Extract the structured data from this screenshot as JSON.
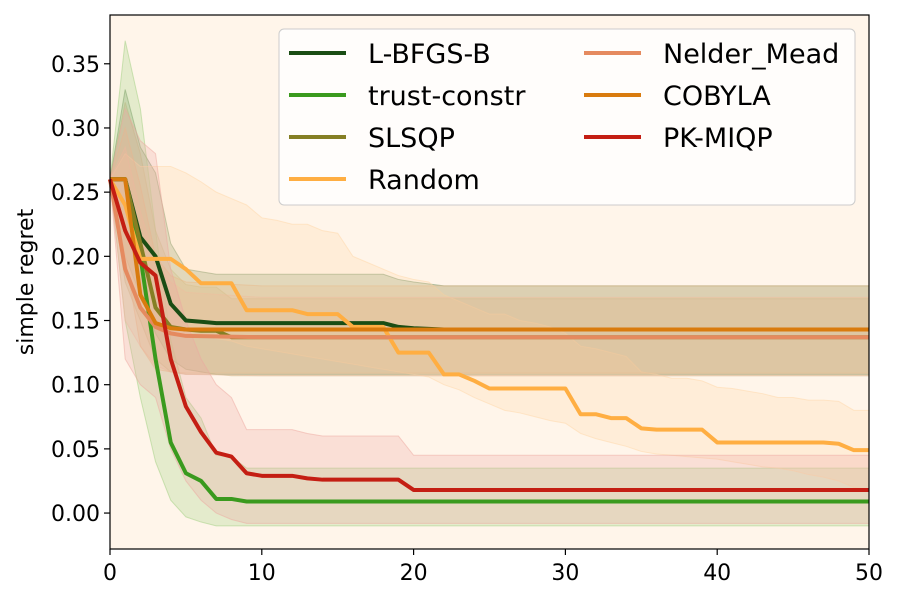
{
  "chart_data": {
    "type": "line",
    "title": "",
    "xlabel": "",
    "ylabel": "simple regret",
    "xlim": [
      0,
      50
    ],
    "ylim": [
      -0.028,
      0.388
    ],
    "xticks": [
      0,
      10,
      20,
      30,
      40,
      50
    ],
    "xtick_labels": [
      "0",
      "10",
      "20",
      "30",
      "40",
      "50"
    ],
    "yticks": [
      0.0,
      0.05,
      0.1,
      0.15,
      0.2,
      0.25,
      0.3,
      0.35
    ],
    "ytick_labels": [
      "0.00",
      "0.05",
      "0.10",
      "0.15",
      "0.20",
      "0.25",
      "0.30",
      "0.35"
    ],
    "grid": false,
    "background_color": "#fff5ea",
    "legend": {
      "location": "top-right",
      "columns": 2
    },
    "series": [
      {
        "name": "L-BFGS-B",
        "color": "#1a4d14",
        "band_color": "#6f8f5f",
        "x": [
          0,
          1,
          2,
          3,
          4,
          5,
          6,
          7,
          8,
          9,
          10,
          15,
          17,
          18,
          19,
          20,
          22,
          50
        ],
        "y": [
          0.26,
          0.26,
          0.215,
          0.2,
          0.163,
          0.15,
          0.149,
          0.148,
          0.148,
          0.148,
          0.148,
          0.148,
          0.148,
          0.148,
          0.145,
          0.144,
          0.143,
          0.143
        ],
        "lower": [
          0.26,
          0.2,
          0.17,
          0.14,
          0.12,
          0.112,
          0.11,
          0.108,
          0.108,
          0.108,
          0.108,
          0.108,
          0.108,
          0.108,
          0.108,
          0.108,
          0.108,
          0.108
        ],
        "upper": [
          0.26,
          0.33,
          0.285,
          0.265,
          0.21,
          0.19,
          0.188,
          0.186,
          0.186,
          0.186,
          0.186,
          0.186,
          0.186,
          0.186,
          0.182,
          0.18,
          0.177,
          0.177
        ]
      },
      {
        "name": "trust-constr",
        "color": "#3a9a1e",
        "band_color": "#9fcf7f",
        "x": [
          0,
          1,
          2,
          3,
          4,
          5,
          6,
          7,
          8,
          9,
          10,
          50
        ],
        "y": [
          0.26,
          0.26,
          0.2,
          0.12,
          0.055,
          0.031,
          0.025,
          0.011,
          0.011,
          0.009,
          0.009,
          0.009
        ],
        "lower": [
          0.26,
          0.15,
          0.09,
          0.04,
          0.01,
          -0.003,
          -0.007,
          -0.01,
          -0.01,
          -0.01,
          -0.01,
          -0.01
        ],
        "upper": [
          0.26,
          0.368,
          0.315,
          0.22,
          0.135,
          0.09,
          0.074,
          0.045,
          0.044,
          0.035,
          0.035,
          0.035
        ]
      },
      {
        "name": "SLSQP",
        "color": "#857f24",
        "band_color": "#bdb982",
        "x": [
          0,
          1,
          2,
          3,
          4,
          5,
          6,
          7,
          8,
          9,
          10,
          50
        ],
        "y": [
          0.26,
          0.26,
          0.21,
          0.16,
          0.145,
          0.143,
          0.142,
          0.142,
          0.137,
          0.137,
          0.137,
          0.137
        ],
        "lower": [
          0.26,
          0.18,
          0.15,
          0.12,
          0.11,
          0.108,
          0.108,
          0.108,
          0.107,
          0.107,
          0.107,
          0.107
        ],
        "upper": [
          0.26,
          0.32,
          0.28,
          0.22,
          0.19,
          0.178,
          0.176,
          0.176,
          0.167,
          0.167,
          0.167,
          0.167
        ]
      },
      {
        "name": "Random",
        "color": "#ffae42",
        "band_color": "#ffd7a8",
        "x": [
          0,
          1,
          2,
          3,
          4,
          5,
          6,
          7,
          8,
          9,
          10,
          11,
          12,
          13,
          14,
          15,
          16,
          17,
          18,
          19,
          20,
          21,
          22,
          23,
          24,
          25,
          26,
          27,
          28,
          29,
          30,
          31,
          32,
          33,
          34,
          35,
          36,
          37,
          38,
          39,
          40,
          41,
          42,
          43,
          44,
          45,
          46,
          47,
          48,
          49,
          50
        ],
        "y": [
          0.26,
          0.24,
          0.198,
          0.198,
          0.198,
          0.19,
          0.179,
          0.179,
          0.179,
          0.158,
          0.158,
          0.158,
          0.158,
          0.155,
          0.155,
          0.155,
          0.145,
          0.145,
          0.145,
          0.125,
          0.125,
          0.125,
          0.108,
          0.108,
          0.103,
          0.097,
          0.097,
          0.097,
          0.097,
          0.097,
          0.097,
          0.077,
          0.077,
          0.074,
          0.074,
          0.066,
          0.065,
          0.065,
          0.065,
          0.065,
          0.055,
          0.055,
          0.055,
          0.055,
          0.055,
          0.055,
          0.055,
          0.055,
          0.054,
          0.049,
          0.049
        ],
        "lower": [
          0.26,
          0.2,
          0.16,
          0.145,
          0.14,
          0.14,
          0.138,
          0.136,
          0.134,
          0.13,
          0.128,
          0.126,
          0.124,
          0.122,
          0.12,
          0.118,
          0.116,
          0.114,
          0.112,
          0.11,
          0.108,
          0.106,
          0.1,
          0.096,
          0.09,
          0.085,
          0.08,
          0.078,
          0.075,
          0.072,
          0.07,
          0.062,
          0.058,
          0.055,
          0.052,
          0.048,
          0.046,
          0.045,
          0.044,
          0.043,
          0.042,
          0.04,
          0.038,
          0.036,
          0.035,
          0.033,
          0.03,
          0.028,
          0.025,
          0.02,
          0.018
        ],
        "upper": [
          0.26,
          0.28,
          0.27,
          0.27,
          0.27,
          0.265,
          0.258,
          0.25,
          0.245,
          0.24,
          0.23,
          0.228,
          0.225,
          0.225,
          0.22,
          0.218,
          0.2,
          0.195,
          0.19,
          0.185,
          0.182,
          0.18,
          0.17,
          0.165,
          0.16,
          0.155,
          0.155,
          0.15,
          0.148,
          0.145,
          0.14,
          0.13,
          0.128,
          0.125,
          0.122,
          0.11,
          0.108,
          0.105,
          0.105,
          0.103,
          0.098,
          0.097,
          0.095,
          0.093,
          0.09,
          0.09,
          0.088,
          0.088,
          0.087,
          0.08,
          0.08
        ]
      },
      {
        "name": "Nelder_Mead",
        "color": "#e58a5f",
        "band_color": "#f1c0a6",
        "x": [
          0,
          1,
          2,
          3,
          4,
          5,
          10,
          50
        ],
        "y": [
          0.26,
          0.19,
          0.16,
          0.145,
          0.14,
          0.138,
          0.137,
          0.137
        ],
        "lower": [
          0.26,
          0.15,
          0.13,
          0.115,
          0.11,
          0.108,
          0.107,
          0.107
        ],
        "upper": [
          0.26,
          0.285,
          0.235,
          0.195,
          0.18,
          0.172,
          0.168,
          0.168
        ]
      },
      {
        "name": "COBYLA",
        "color": "#d97b0e",
        "band_color": "#e9b98a",
        "x": [
          0,
          1,
          2,
          3,
          4,
          5,
          10,
          50
        ],
        "y": [
          0.26,
          0.26,
          0.17,
          0.148,
          0.144,
          0.143,
          0.143,
          0.143
        ],
        "lower": [
          0.26,
          0.2,
          0.13,
          0.112,
          0.11,
          0.109,
          0.109,
          0.109
        ],
        "upper": [
          0.26,
          0.3,
          0.255,
          0.2,
          0.185,
          0.18,
          0.177,
          0.177
        ]
      },
      {
        "name": "PK-MIQP",
        "color": "#c41e13",
        "band_color": "#eda7a0",
        "x": [
          0,
          1,
          2,
          3,
          4,
          5,
          6,
          7,
          8,
          9,
          10,
          11,
          12,
          13,
          14,
          15,
          16,
          17,
          18,
          19,
          20,
          21,
          50
        ],
        "y": [
          0.26,
          0.22,
          0.195,
          0.185,
          0.12,
          0.083,
          0.063,
          0.047,
          0.044,
          0.031,
          0.029,
          0.029,
          0.029,
          0.027,
          0.026,
          0.026,
          0.026,
          0.026,
          0.026,
          0.026,
          0.018,
          0.018,
          0.018
        ],
        "lower": [
          0.26,
          0.12,
          0.1,
          0.09,
          0.05,
          0.025,
          0.01,
          0.0,
          -0.005,
          -0.008,
          -0.008,
          -0.008,
          -0.008,
          -0.008,
          -0.008,
          -0.008,
          -0.008,
          -0.008,
          -0.008,
          -0.008,
          -0.008,
          -0.008,
          -0.008
        ],
        "upper": [
          0.26,
          0.315,
          0.29,
          0.28,
          0.19,
          0.15,
          0.12,
          0.1,
          0.09,
          0.065,
          0.065,
          0.065,
          0.065,
          0.062,
          0.06,
          0.06,
          0.06,
          0.06,
          0.06,
          0.06,
          0.045,
          0.045,
          0.045
        ]
      }
    ]
  }
}
